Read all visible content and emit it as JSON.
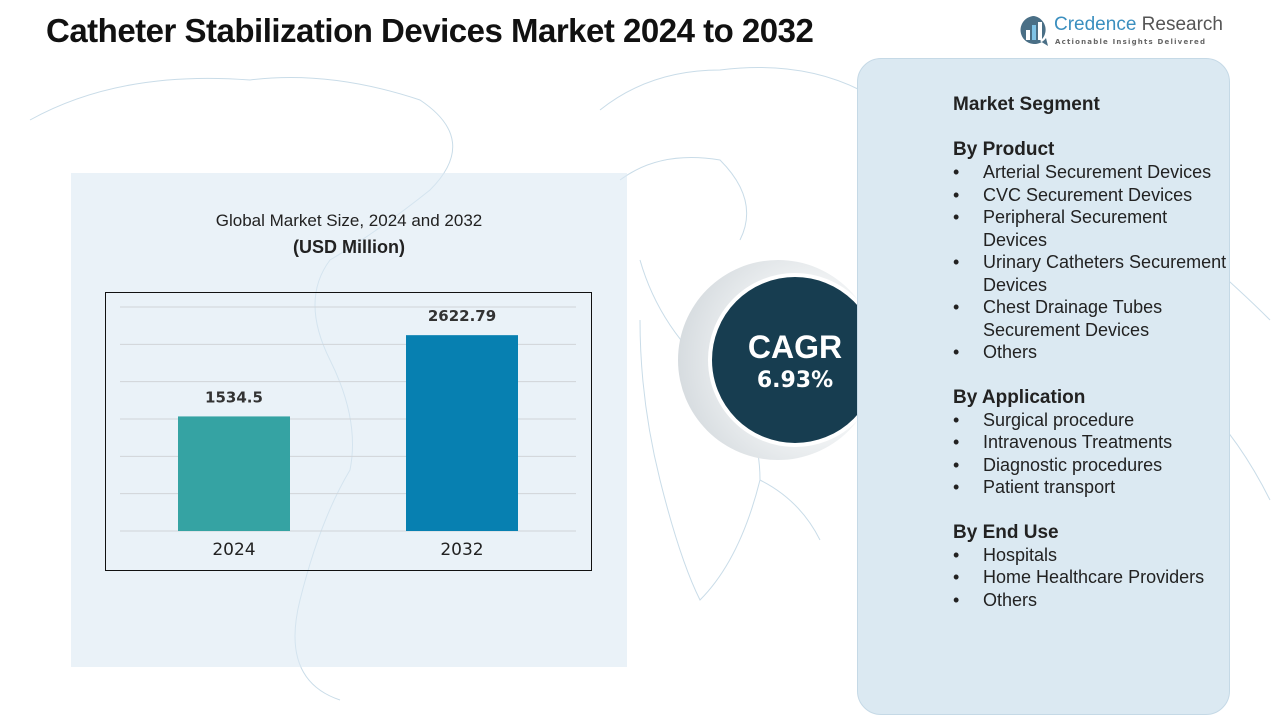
{
  "header": {
    "title": "Catheter Stabilization Devices Market 2024 to 2032"
  },
  "logo": {
    "name_part1": "Credence",
    "name_part2": "Research",
    "tagline": "Actionable Insights Delivered",
    "color": "#3b8fbf"
  },
  "chart_data": {
    "type": "bar",
    "title": "Global Market Size, 2024 and 2032",
    "subtitle": "(USD Million)",
    "categories": [
      "2024",
      "2032"
    ],
    "values": [
      1534.5,
      2622.79
    ],
    "value_labels": [
      "1534.5",
      "2622.79"
    ],
    "colors": [
      "#35a3a3",
      "#0780b1"
    ],
    "ylim": [
      0,
      3000
    ],
    "grid": true,
    "xlabel": "",
    "ylabel": ""
  },
  "cagr": {
    "label": "CAGR",
    "value": "6.93%",
    "color": "#173d50"
  },
  "segments": {
    "heading": "Market Segment",
    "groups": [
      {
        "title": "By Product",
        "items": [
          "Arterial Securement Devices",
          "CVC Securement Devices",
          "Peripheral Securement Devices",
          "Urinary Catheters Securement Devices",
          "Chest Drainage Tubes Securement Devices",
          "Others"
        ]
      },
      {
        "title": "By Application",
        "items": [
          "Surgical procedure",
          "Intravenous Treatments",
          "Diagnostic procedures",
          "Patient transport"
        ]
      },
      {
        "title": "By End Use",
        "items": [
          "Hospitals",
          "Home Healthcare Providers",
          "Others"
        ]
      }
    ]
  }
}
